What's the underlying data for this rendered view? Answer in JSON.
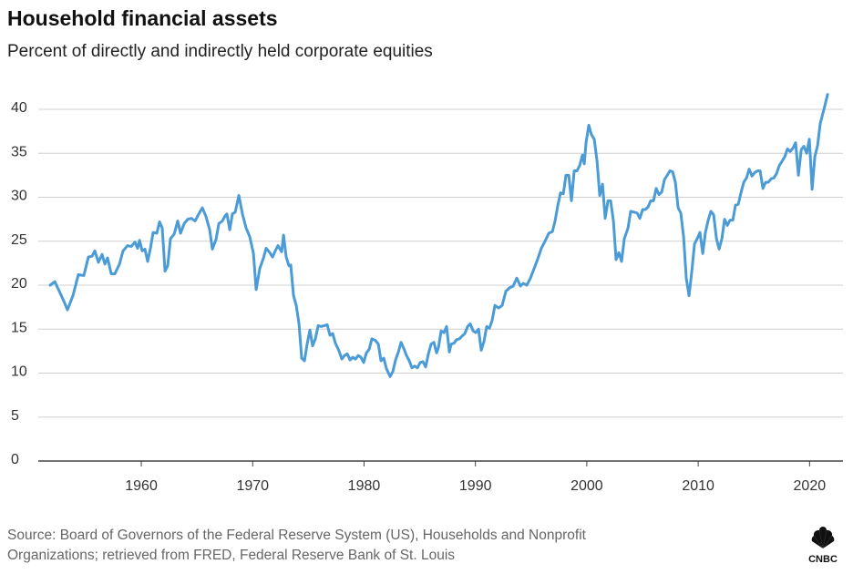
{
  "chart_data": {
    "type": "line",
    "title": "Household financial assets",
    "subtitle": "Percent of directly and indirectly held corporate equities",
    "source": [
      "Source: Board of Governors of the Federal Reserve System (US), Households and Nonprofit",
      "Organizations; retrieved from FRED, Federal Reserve Bank of St. Louis"
    ],
    "logo": "CNBC",
    "xlim": [
      1950.75,
      2023
    ],
    "xticks": [
      1960,
      1970,
      1980,
      1990,
      2000,
      2010,
      2020
    ],
    "ylim": [
      0,
      42
    ],
    "yticks": [
      0,
      5,
      10,
      15,
      20,
      25,
      30,
      35,
      40
    ],
    "grid": true,
    "series": [
      {
        "color": "#4a9bd6",
        "x": [
          1951.82,
          1952.23,
          1952.64,
          1953.04,
          1953.37,
          1953.86,
          1954.35,
          1954.84,
          1955.25,
          1955.58,
          1955.83,
          1956.15,
          1956.48,
          1956.73,
          1956.97,
          1957.3,
          1957.63,
          1958.04,
          1958.36,
          1958.77,
          1959.1,
          1959.43,
          1959.67,
          1959.84,
          1960.08,
          1960.33,
          1960.57,
          1960.82,
          1961.06,
          1961.39,
          1961.64,
          1961.88,
          1962.13,
          1962.37,
          1962.62,
          1962.95,
          1963.27,
          1963.52,
          1963.85,
          1964.17,
          1964.5,
          1964.83,
          1965.16,
          1965.48,
          1965.81,
          1966.14,
          1966.38,
          1966.71,
          1966.96,
          1967.28,
          1967.53,
          1967.69,
          1967.94,
          1968.18,
          1968.43,
          1968.76,
          1969.08,
          1969.41,
          1969.74,
          1970.07,
          1970.31,
          1970.64,
          1970.97,
          1971.21,
          1971.54,
          1971.78,
          1972.03,
          1972.27,
          1972.6,
          1972.77,
          1973.01,
          1973.26,
          1973.42,
          1973.67,
          1973.91,
          1974.16,
          1974.4,
          1974.65,
          1974.89,
          1975.14,
          1975.38,
          1975.63,
          1975.88,
          1976.12,
          1976.45,
          1976.69,
          1976.94,
          1977.18,
          1977.43,
          1977.76,
          1978.0,
          1978.25,
          1978.49,
          1978.74,
          1978.98,
          1979.23,
          1979.48,
          1979.72,
          1979.97,
          1980.21,
          1980.46,
          1980.7,
          1981.03,
          1981.28,
          1981.52,
          1981.77,
          1982.01,
          1982.34,
          1982.59,
          1982.83,
          1983.08,
          1983.32,
          1983.57,
          1983.81,
          1984.06,
          1984.3,
          1984.55,
          1984.79,
          1985.04,
          1985.29,
          1985.53,
          1985.78,
          1986.02,
          1986.27,
          1986.51,
          1986.68,
          1986.92,
          1987.17,
          1987.41,
          1987.66,
          1987.82,
          1988.07,
          1988.31,
          1988.56,
          1988.8,
          1989.05,
          1989.3,
          1989.54,
          1989.79,
          1990.03,
          1990.28,
          1990.52,
          1990.77,
          1991.01,
          1991.26,
          1991.5,
          1991.75,
          1992.08,
          1992.4,
          1992.73,
          1993.06,
          1993.39,
          1993.71,
          1994.04,
          1994.29,
          1994.61,
          1994.94,
          1995.27,
          1995.6,
          1995.92,
          1996.25,
          1996.58,
          1996.91,
          1997.15,
          1997.4,
          1997.64,
          1997.89,
          1998.13,
          1998.38,
          1998.62,
          1998.87,
          1999.11,
          1999.36,
          1999.61,
          1999.77,
          1999.93,
          2000.18,
          2000.42,
          2000.67,
          2000.92,
          2001.16,
          2001.41,
          2001.65,
          2001.9,
          2002.14,
          2002.39,
          2002.63,
          2002.88,
          2003.12,
          2003.37,
          2003.7,
          2003.94,
          2004.27,
          2004.52,
          2004.76,
          2005.01,
          2005.25,
          2005.5,
          2005.74,
          2005.99,
          2006.23,
          2006.48,
          2006.73,
          2006.97,
          2007.22,
          2007.46,
          2007.71,
          2007.95,
          2008.2,
          2008.44,
          2008.69,
          2008.93,
          2009.18,
          2009.43,
          2009.67,
          2009.92,
          2010.16,
          2010.41,
          2010.65,
          2010.9,
          2011.14,
          2011.39,
          2011.64,
          2011.88,
          2012.13,
          2012.37,
          2012.62,
          2012.86,
          2013.11,
          2013.35,
          2013.6,
          2013.84,
          2014.09,
          2014.34,
          2014.58,
          2014.83,
          2015.07,
          2015.32,
          2015.56,
          2015.81,
          2016.05,
          2016.3,
          2016.55,
          2016.79,
          2017.04,
          2017.28,
          2017.53,
          2017.77,
          2018.02,
          2018.26,
          2018.51,
          2018.75,
          2019.0,
          2019.25,
          2019.49,
          2019.74,
          2019.98,
          2020.23,
          2020.47,
          2020.72,
          2020.96,
          2021.29,
          2021.62
        ],
        "values": [
          20.0,
          20.4,
          19.3,
          18.2,
          17.2,
          18.8,
          21.2,
          21.1,
          23.2,
          23.3,
          23.9,
          22.6,
          23.5,
          22.4,
          23.1,
          21.3,
          21.3,
          22.4,
          23.9,
          24.5,
          24.4,
          24.9,
          24.2,
          25.1,
          23.9,
          24.1,
          22.7,
          24.2,
          26.0,
          25.9,
          27.2,
          26.5,
          21.6,
          22.2,
          25.3,
          25.8,
          27.3,
          25.9,
          27.0,
          27.5,
          27.6,
          27.3,
          28.1,
          28.8,
          27.8,
          26.3,
          24.1,
          25.2,
          27.0,
          27.3,
          27.9,
          28.1,
          26.3,
          28.1,
          28.3,
          30.2,
          28.1,
          26.5,
          25.5,
          23.6,
          19.5,
          21.9,
          23.1,
          24.2,
          23.7,
          23.2,
          23.9,
          24.5,
          23.8,
          25.7,
          23.2,
          22.2,
          22.3,
          18.8,
          17.7,
          15.6,
          11.7,
          11.4,
          13.3,
          14.9,
          13.1,
          13.9,
          15.4,
          15.3,
          15.4,
          15.5,
          14.3,
          14.5,
          13.4,
          12.5,
          11.6,
          12.0,
          12.2,
          11.5,
          11.8,
          11.6,
          12.0,
          11.8,
          11.2,
          12.3,
          12.7,
          13.9,
          13.7,
          13.3,
          11.4,
          11.7,
          10.5,
          9.6,
          10.2,
          11.5,
          12.4,
          13.5,
          12.8,
          12.0,
          11.4,
          10.6,
          10.8,
          10.6,
          11.2,
          11.3,
          10.7,
          12.2,
          13.3,
          13.5,
          12.3,
          12.9,
          14.8,
          14.6,
          15.3,
          12.4,
          13.3,
          13.4,
          13.8,
          13.9,
          14.2,
          14.5,
          15.3,
          15.6,
          14.8,
          14.6,
          15.0,
          12.6,
          13.6,
          15.3,
          15.1,
          16.0,
          17.7,
          17.4,
          17.7,
          19.3,
          19.7,
          19.9,
          20.8,
          19.9,
          20.2,
          20.0,
          20.8,
          21.9,
          23.0,
          24.2,
          25.0,
          25.9,
          26.1,
          27.3,
          29.1,
          30.5,
          30.4,
          32.5,
          32.5,
          29.6,
          33.0,
          33.0,
          33.6,
          34.8,
          33.8,
          36.2,
          38.2,
          37.1,
          36.6,
          34.1,
          30.2,
          31.5,
          27.6,
          29.6,
          29.6,
          27.3,
          22.9,
          23.7,
          22.7,
          25.3,
          26.5,
          28.4,
          28.3,
          28.2,
          27.6,
          28.6,
          28.6,
          28.9,
          29.6,
          29.6,
          31.0,
          30.3,
          30.6,
          32.0,
          32.5,
          33.0,
          32.9,
          31.7,
          28.8,
          28.2,
          25.5,
          20.8,
          18.8,
          21.6,
          24.7,
          25.3,
          26.0,
          23.6,
          26.0,
          27.4,
          28.4,
          28.0,
          25.3,
          24.1,
          25.3,
          27.5,
          26.8,
          27.4,
          27.4,
          29.1,
          29.2,
          30.5,
          31.7,
          32.2,
          33.2,
          32.4,
          32.8,
          33.0,
          33.0,
          31.0,
          31.7,
          31.7,
          32.1,
          32.2,
          32.7,
          33.6,
          34.1,
          34.6,
          35.5,
          35.2,
          35.6,
          36.2,
          32.5,
          35.4,
          35.8,
          35.0,
          36.6,
          30.9,
          34.6,
          35.9,
          38.4,
          40.0,
          41.7
        ]
      }
    ]
  }
}
